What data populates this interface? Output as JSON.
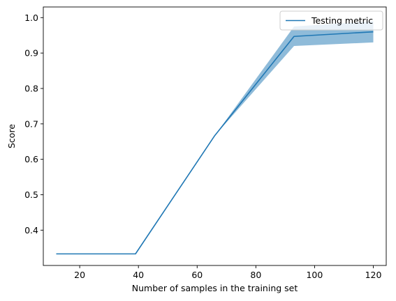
{
  "chart_data": {
    "type": "line",
    "title": "",
    "xlabel": "Number of samples in the training set",
    "ylabel": "Score",
    "xlim": [
      7.6,
      124.4
    ],
    "ylim": [
      0.3003,
      1.0301
    ],
    "xticks": [
      20,
      40,
      60,
      80,
      100,
      120
    ],
    "yticks": [
      0.4,
      0.5,
      0.6,
      0.7,
      0.8,
      0.9,
      1.0
    ],
    "xtick_labels": [
      "20",
      "40",
      "60",
      "80",
      "100",
      "120"
    ],
    "ytick_labels": [
      "0.4",
      "0.5",
      "0.6",
      "0.7",
      "0.8",
      "0.9",
      "1.0"
    ],
    "grid": false,
    "legend_position": "top-right",
    "series": [
      {
        "name": "Testing metric",
        "color": "#1f77b4",
        "x": [
          12,
          39,
          66,
          93,
          120
        ],
        "y": [
          0.333,
          0.333,
          0.667,
          0.947,
          0.96
        ],
        "band_lower": [
          0.333,
          0.333,
          0.667,
          0.92,
          0.93
        ],
        "band_upper": [
          0.333,
          0.333,
          0.667,
          0.975,
          0.99
        ],
        "band_color": "#1f77b4",
        "band_opacity": 0.5
      }
    ]
  }
}
